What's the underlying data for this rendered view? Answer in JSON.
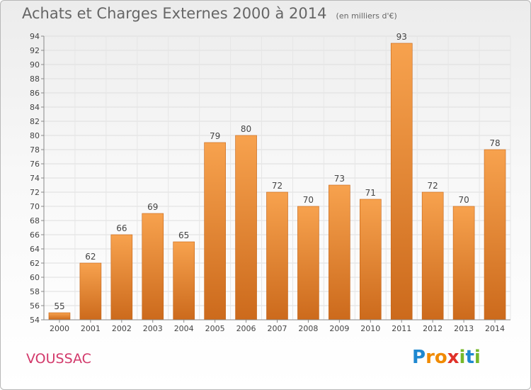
{
  "chart_data": {
    "type": "bar",
    "title": "Achats et Charges Externes 2000 à 2014",
    "subtitle": "(en milliers d'€)",
    "categories": [
      "2000",
      "2001",
      "2002",
      "2003",
      "2004",
      "2005",
      "2006",
      "2007",
      "2008",
      "2009",
      "2010",
      "2011",
      "2012",
      "2013",
      "2014"
    ],
    "values": [
      55,
      62,
      66,
      69,
      65,
      79,
      80,
      72,
      70,
      73,
      71,
      93,
      72,
      70,
      78
    ],
    "ylim": [
      54,
      94
    ],
    "yticks": [
      54,
      56,
      58,
      60,
      62,
      64,
      66,
      68,
      70,
      72,
      74,
      76,
      78,
      80,
      82,
      84,
      86,
      88,
      90,
      92,
      94
    ],
    "grid": true,
    "bar_color_top": "#f7a24e",
    "bar_color_bottom": "#cc6a1c"
  },
  "place": "VOUSSAC",
  "logo": {
    "letters": [
      "P",
      "r",
      "o",
      "x",
      "i",
      "t",
      "i"
    ],
    "colors": [
      "#1e88d0",
      "#f08a00",
      "#f08a00",
      "#e0322a",
      "#76b82a",
      "#1e88d0",
      "#76b82a"
    ]
  }
}
